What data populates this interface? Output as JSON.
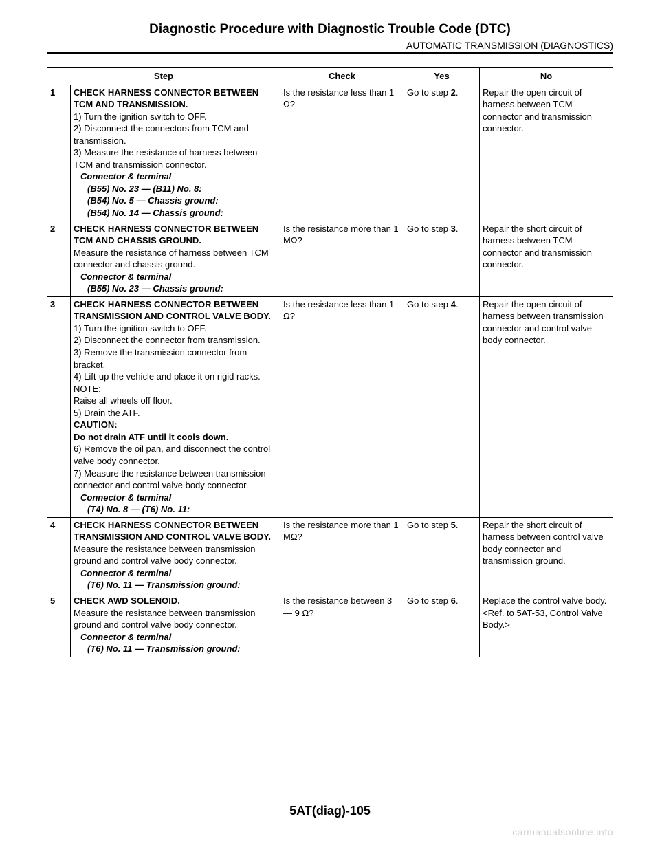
{
  "title": "Diagnostic Procedure with Diagnostic Trouble Code (DTC)",
  "section": "AUTOMATIC TRANSMISSION (DIAGNOSTICS)",
  "headers": {
    "step": "Step",
    "check": "Check",
    "yes": "Yes",
    "no": "No"
  },
  "rows": [
    {
      "num": "1",
      "step_title": "CHECK HARNESS CONNECTOR BETWEEN TCM AND TRANSMISSION.",
      "lines": [
        "1)  Turn the ignition switch to OFF.",
        "2)  Disconnect the connectors from TCM and transmission.",
        "3)  Measure the resistance of harness between TCM and transmission connector."
      ],
      "ct_label": "Connector & terminal",
      "ct": [
        "(B55) No. 23 — (B11) No. 8:",
        "(B54) No. 5 — Chassis ground:",
        "(B54) No. 14 — Chassis ground:"
      ],
      "check": "Is the resistance less than 1 Ω?",
      "yes_pre": "Go to step ",
      "yes_bold": "2",
      "yes_post": ".",
      "no": "Repair the open circuit of harness between TCM connector and transmission connector."
    },
    {
      "num": "2",
      "step_title": "CHECK HARNESS CONNECTOR BETWEEN TCM AND CHASSIS GROUND.",
      "lines": [
        "Measure the resistance of harness between TCM connector and chassis ground."
      ],
      "ct_label": "Connector & terminal",
      "ct": [
        "(B55) No. 23 — Chassis ground:"
      ],
      "check": "Is the resistance more than 1 MΩ?",
      "yes_pre": "Go to step ",
      "yes_bold": "3",
      "yes_post": ".",
      "no": "Repair the short circuit of harness between TCM connector and transmission connector."
    },
    {
      "num": "3",
      "step_title": "CHECK HARNESS CONNECTOR BETWEEN TRANSMISSION AND CONTROL VALVE BODY.",
      "lines": [
        "1)  Turn the ignition switch to OFF.",
        "2)  Disconnect the connector from transmission.",
        "3)  Remove the transmission connector from bracket.",
        "4)  Lift-up the vehicle and place it on rigid racks."
      ],
      "note_label": "NOTE:",
      "note_text": "Raise all wheels off floor.",
      "lines2": [
        "5)  Drain the ATF."
      ],
      "caution_label": "CAUTION:",
      "caution_text": "Do not drain ATF until it cools down.",
      "lines3": [
        "6)  Remove the oil pan, and disconnect the control valve body connector.",
        "7)  Measure the resistance between transmission connector and control valve body connector."
      ],
      "ct_label": "Connector & terminal",
      "ct": [
        "(T4) No. 8 — (T6) No. 11:"
      ],
      "check": "Is the resistance less than 1 Ω?",
      "yes_pre": "Go to step ",
      "yes_bold": "4",
      "yes_post": ".",
      "no": "Repair the open circuit of harness between transmission connector and control valve body connector."
    },
    {
      "num": "4",
      "step_title": "CHECK HARNESS CONNECTOR BETWEEN TRANSMISSION AND CONTROL VALVE BODY.",
      "lines": [
        "Measure the resistance between transmission ground and control valve body connector."
      ],
      "ct_label": "Connector & terminal",
      "ct": [
        "(T6) No. 11 — Transmission ground:"
      ],
      "check": "Is the resistance more than 1 MΩ?",
      "yes_pre": "Go to step ",
      "yes_bold": "5",
      "yes_post": ".",
      "no": "Repair the short circuit of harness between control valve body connector and transmission ground."
    },
    {
      "num": "5",
      "step_title": "CHECK AWD SOLENOID.",
      "lines": [
        "Measure the resistance between transmission ground and control valve body connector."
      ],
      "ct_label": "Connector & terminal",
      "ct": [
        "(T6) No. 11 — Transmission ground:"
      ],
      "check": "Is the resistance between 3 — 9 Ω?",
      "yes_pre": "Go to step ",
      "yes_bold": "6",
      "yes_post": ".",
      "no": "Replace the control valve body. <Ref. to 5AT-53, Control Valve Body.>"
    }
  ],
  "footer": "5AT(diag)-105",
  "watermark": "carmanualsonline.info",
  "colors": {
    "text": "#000000",
    "background": "#ffffff",
    "watermark": "#cfcfcf",
    "border": "#000000"
  }
}
